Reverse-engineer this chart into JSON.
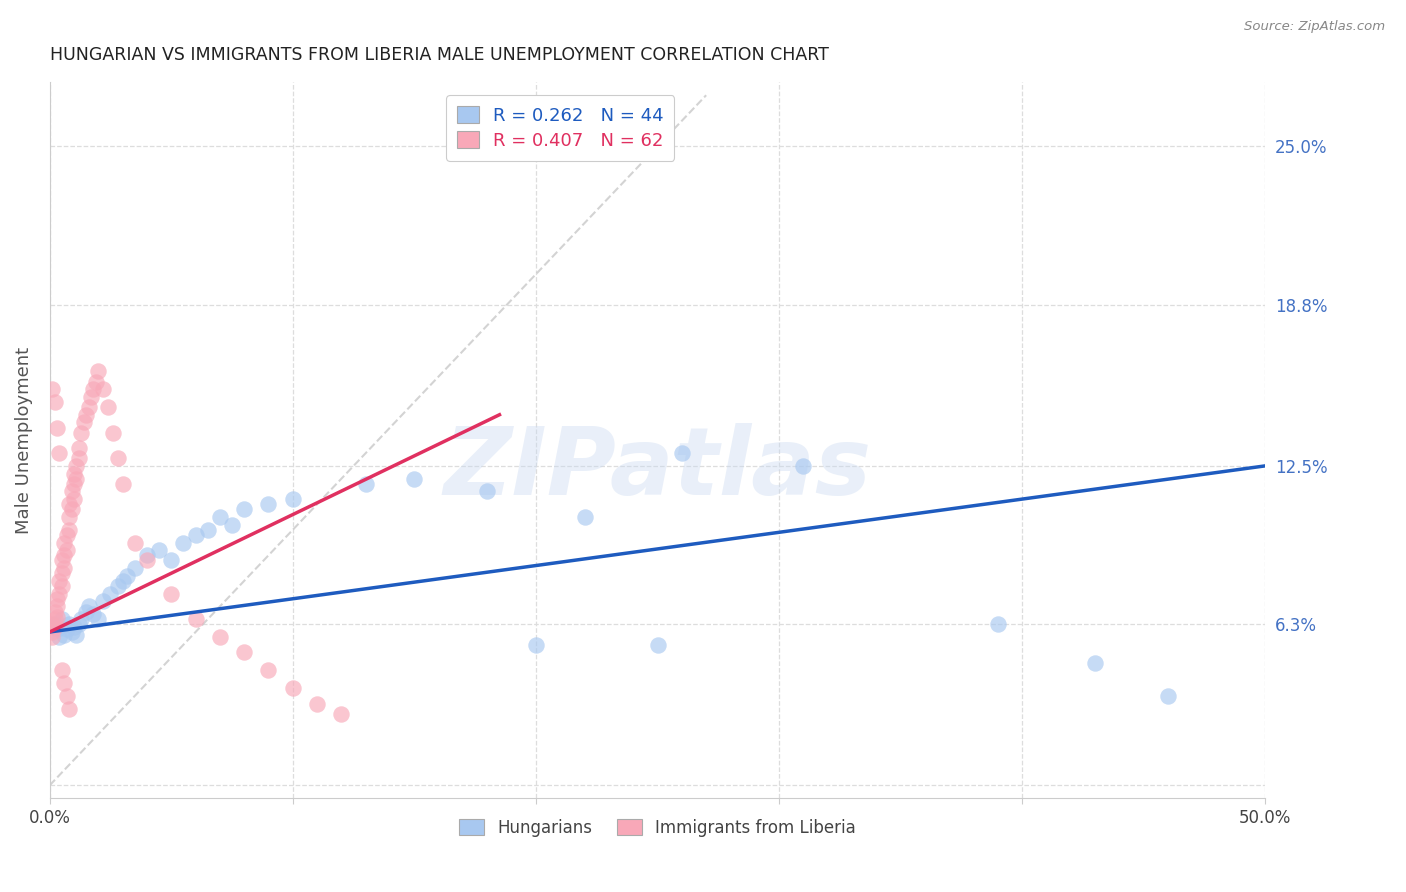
{
  "title": "HUNGARIAN VS IMMIGRANTS FROM LIBERIA MALE UNEMPLOYMENT CORRELATION CHART",
  "source": "Source: ZipAtlas.com",
  "ylabel": "Male Unemployment",
  "xlim": [
    0.0,
    0.5
  ],
  "ylim": [
    -0.005,
    0.275
  ],
  "xticks": [
    0.0,
    0.1,
    0.2,
    0.3,
    0.4,
    0.5
  ],
  "xtick_labels": [
    "0.0%",
    "",
    "",
    "",
    "",
    "50.0%"
  ],
  "yticks_right": [
    0.063,
    0.125,
    0.188,
    0.25
  ],
  "ytick_labels_right": [
    "6.3%",
    "12.5%",
    "18.8%",
    "25.0%"
  ],
  "grid_color": "#dddddd",
  "bg_color": "#ffffff",
  "watermark": "ZIPatlas",
  "R_hungarian": 0.262,
  "N_hungarian": 44,
  "R_liberia": 0.407,
  "N_liberia": 62,
  "hun_dot_color": "#a8c8f0",
  "lib_dot_color": "#f8a8b8",
  "hun_line_color": "#1e5bbf",
  "lib_line_color": "#e03060",
  "diag_color": "#cccccc",
  "title_color": "#222222",
  "axis_label_color": "#555555",
  "right_tick_color": "#4472c4",
  "hun_line_x0": 0.0,
  "hun_line_y0": 0.06,
  "hun_line_x1": 0.5,
  "hun_line_y1": 0.125,
  "lib_line_x0": 0.0,
  "lib_line_y0": 0.06,
  "lib_line_x1": 0.185,
  "lib_line_y1": 0.145,
  "hungarian_x": [
    0.002,
    0.003,
    0.004,
    0.005,
    0.006,
    0.007,
    0.008,
    0.009,
    0.01,
    0.011,
    0.012,
    0.013,
    0.015,
    0.016,
    0.018,
    0.02,
    0.022,
    0.025,
    0.028,
    0.03,
    0.032,
    0.035,
    0.04,
    0.045,
    0.05,
    0.055,
    0.06,
    0.065,
    0.07,
    0.075,
    0.08,
    0.09,
    0.1,
    0.13,
    0.15,
    0.18,
    0.22,
    0.26,
    0.31,
    0.39,
    0.43,
    0.46,
    0.25,
    0.2
  ],
  "hungarian_y": [
    0.063,
    0.061,
    0.058,
    0.065,
    0.059,
    0.061,
    0.063,
    0.06,
    0.062,
    0.059,
    0.063,
    0.065,
    0.068,
    0.07,
    0.067,
    0.065,
    0.072,
    0.075,
    0.078,
    0.08,
    0.082,
    0.085,
    0.09,
    0.092,
    0.088,
    0.095,
    0.098,
    0.1,
    0.105,
    0.102,
    0.108,
    0.11,
    0.112,
    0.118,
    0.12,
    0.115,
    0.105,
    0.13,
    0.125,
    0.063,
    0.048,
    0.035,
    0.055,
    0.055
  ],
  "liberia_x": [
    0.001,
    0.001,
    0.001,
    0.002,
    0.002,
    0.002,
    0.003,
    0.003,
    0.003,
    0.004,
    0.004,
    0.005,
    0.005,
    0.005,
    0.006,
    0.006,
    0.006,
    0.007,
    0.007,
    0.008,
    0.008,
    0.008,
    0.009,
    0.009,
    0.01,
    0.01,
    0.01,
    0.011,
    0.011,
    0.012,
    0.012,
    0.013,
    0.014,
    0.015,
    0.016,
    0.017,
    0.018,
    0.019,
    0.02,
    0.022,
    0.024,
    0.026,
    0.028,
    0.03,
    0.035,
    0.04,
    0.05,
    0.06,
    0.07,
    0.08,
    0.09,
    0.1,
    0.11,
    0.12,
    0.001,
    0.002,
    0.003,
    0.004,
    0.005,
    0.006,
    0.007,
    0.008
  ],
  "liberia_y": [
    0.06,
    0.063,
    0.058,
    0.065,
    0.062,
    0.068,
    0.07,
    0.066,
    0.073,
    0.075,
    0.08,
    0.078,
    0.083,
    0.088,
    0.085,
    0.09,
    0.095,
    0.092,
    0.098,
    0.1,
    0.105,
    0.11,
    0.108,
    0.115,
    0.112,
    0.118,
    0.122,
    0.12,
    0.125,
    0.128,
    0.132,
    0.138,
    0.142,
    0.145,
    0.148,
    0.152,
    0.155,
    0.158,
    0.162,
    0.155,
    0.148,
    0.138,
    0.128,
    0.118,
    0.095,
    0.088,
    0.075,
    0.065,
    0.058,
    0.052,
    0.045,
    0.038,
    0.032,
    0.028,
    0.155,
    0.15,
    0.14,
    0.13,
    0.045,
    0.04,
    0.035,
    0.03
  ]
}
